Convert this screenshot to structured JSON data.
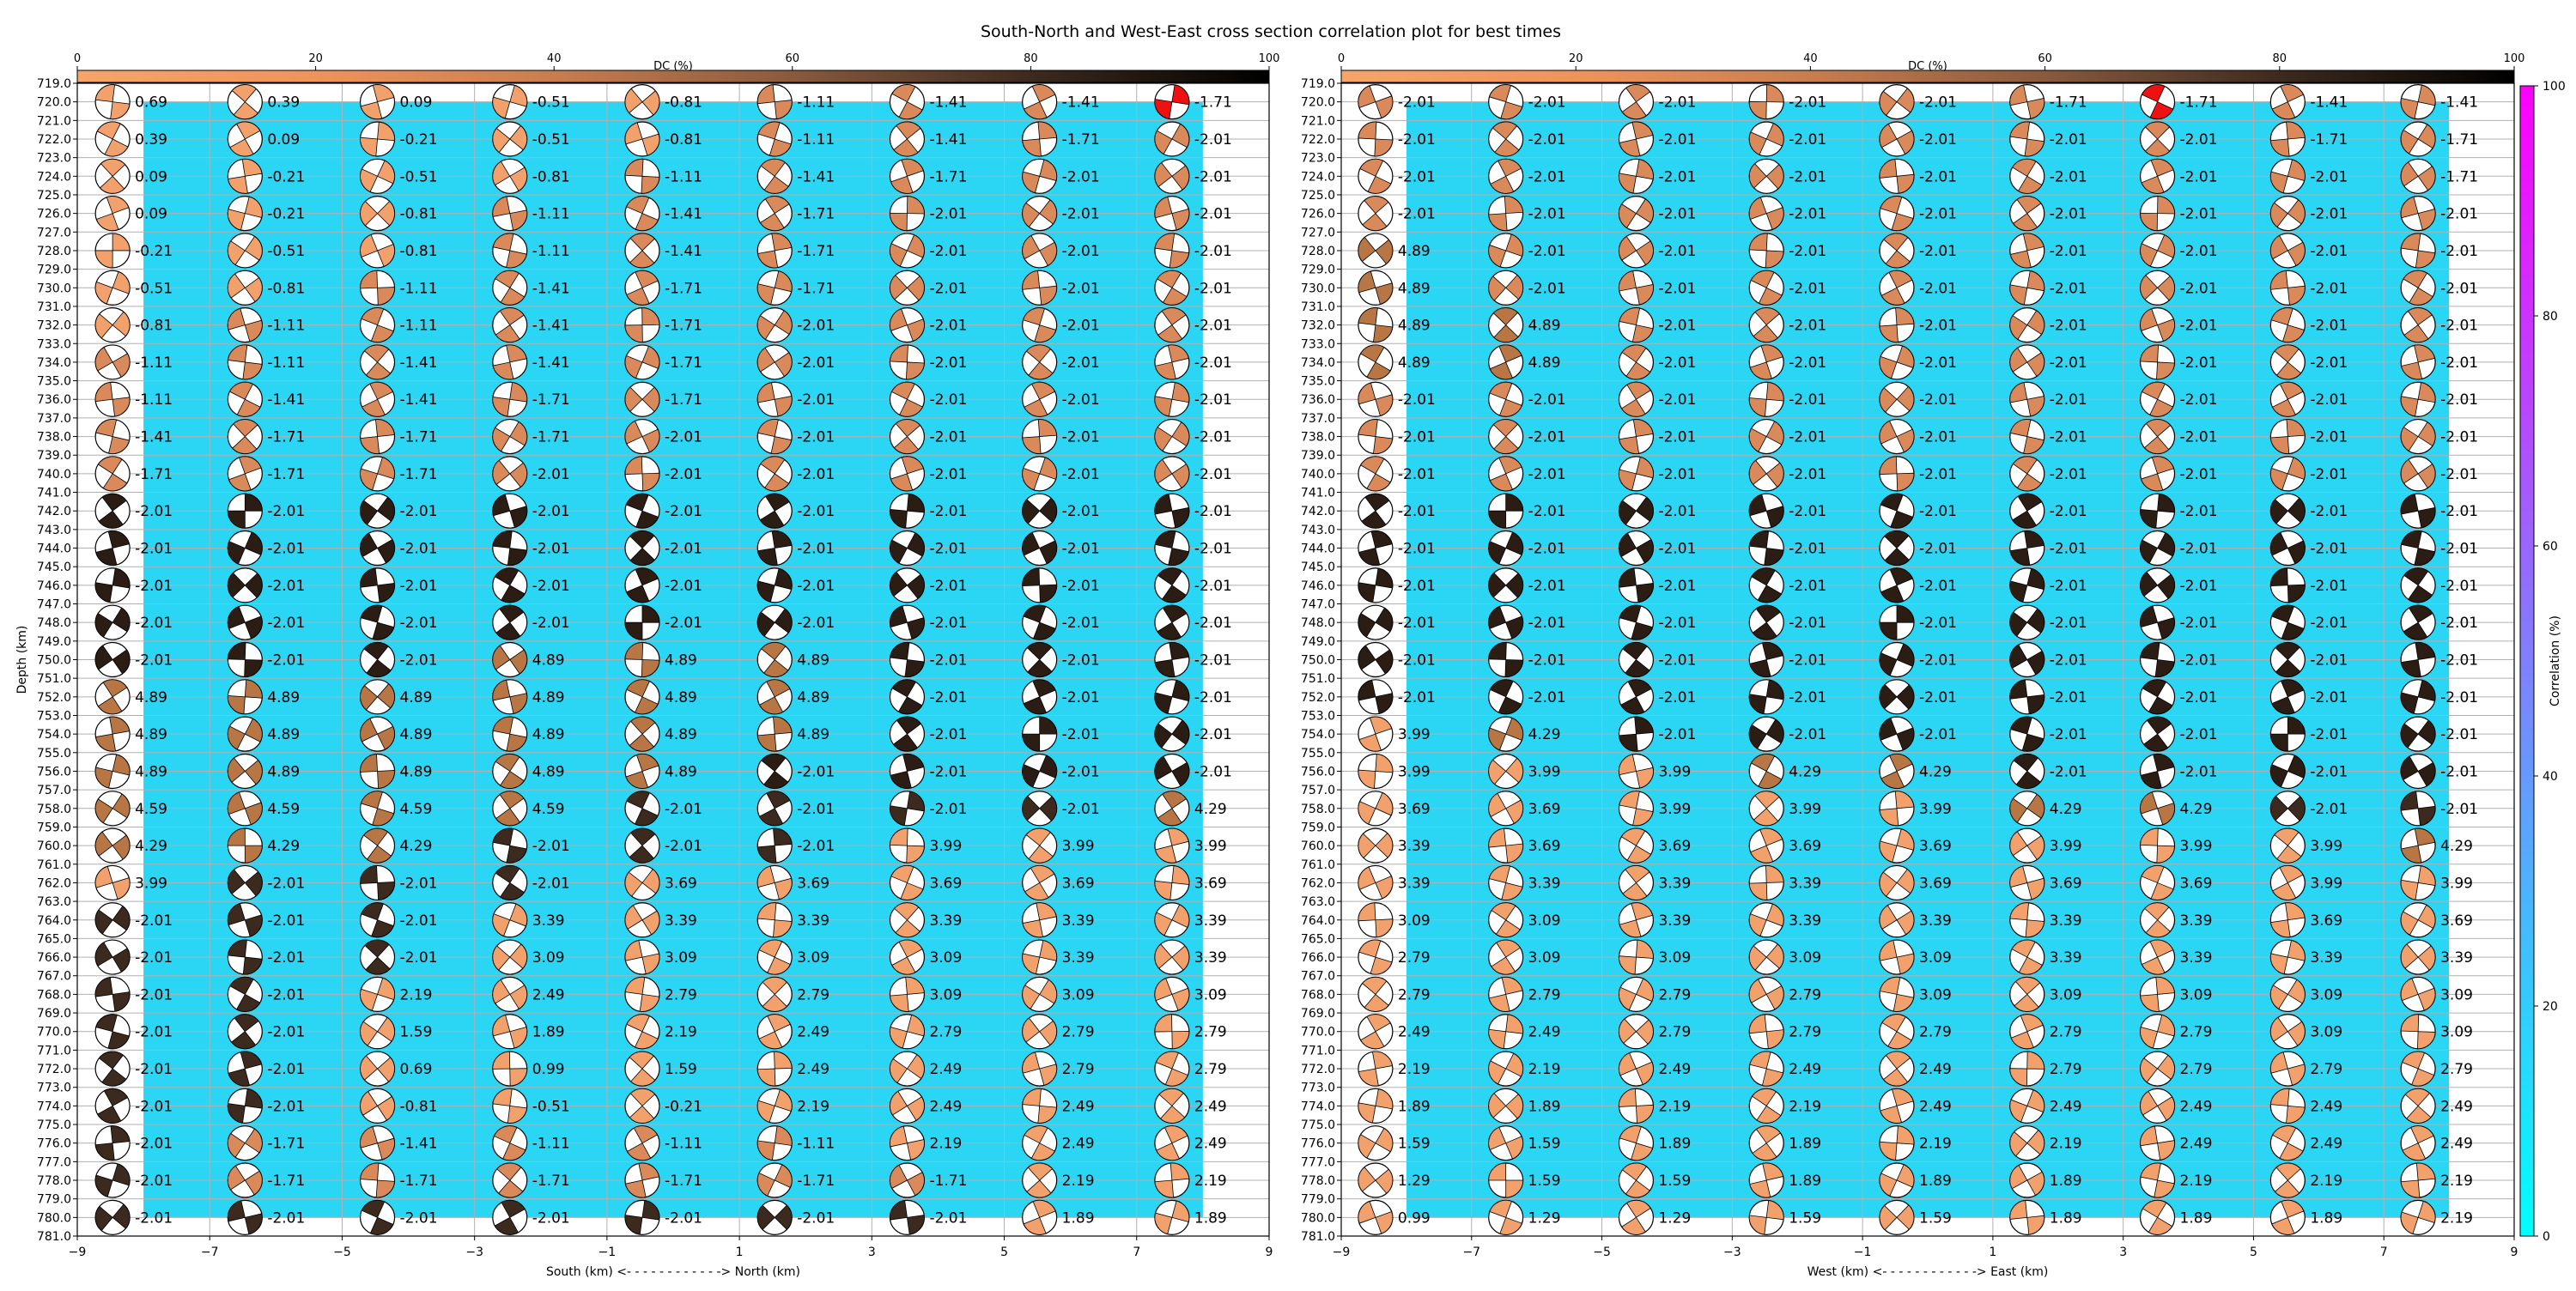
{
  "title": "South-North and West-East cross section correlation plot for best times",
  "dc_colorbar": {
    "label": "DC (%)",
    "ticks": [
      "0",
      "20",
      "40",
      "60",
      "80",
      "100"
    ],
    "stops": [
      "#f5a46a",
      "#f0935a",
      "#c87d4f",
      "#8a5a3c",
      "#3d2a1e",
      "#000000"
    ]
  },
  "correlation_colorbar": {
    "label": "Correlation (%)",
    "ticks": [
      "0",
      "20",
      "40",
      "60",
      "80",
      "100"
    ],
    "stops": [
      "#00ffff",
      "#ff00ff"
    ]
  },
  "chart_data": [
    {
      "type": "heatmap",
      "panel": "south-north",
      "xlabel": "South (km) <- - - - - - - - - - - -> North (km)",
      "ylabel": "Depth (km)",
      "xlim": [
        -9,
        9
      ],
      "ylim": [
        781,
        719
      ],
      "x_ticks": [
        "−9",
        "−7",
        "−5",
        "−3",
        "−1",
        "1",
        "3",
        "5",
        "7",
        "9"
      ],
      "y_ticks": [
        "719.0",
        "720.0",
        "721.0",
        "722.0",
        "723.0",
        "724.0",
        "725.0",
        "726.0",
        "727.0",
        "728.0",
        "729.0",
        "730.0",
        "731.0",
        "732.0",
        "733.0",
        "734.0",
        "735.0",
        "736.0",
        "737.0",
        "738.0",
        "739.0",
        "740.0",
        "741.0",
        "742.0",
        "743.0",
        "744.0",
        "745.0",
        "746.0",
        "747.0",
        "748.0",
        "749.0",
        "750.0",
        "751.0",
        "752.0",
        "753.0",
        "754.0",
        "755.0",
        "756.0",
        "757.0",
        "758.0",
        "759.0",
        "760.0",
        "761.0",
        "762.0",
        "763.0",
        "764.0",
        "765.0",
        "766.0",
        "767.0",
        "768.0",
        "769.0",
        "770.0",
        "771.0",
        "772.0",
        "773.0",
        "774.0",
        "775.0",
        "776.0",
        "777.0",
        "778.0",
        "779.0",
        "780.0",
        "781.0"
      ],
      "x": [
        -8,
        -6,
        -4,
        -2,
        0,
        2,
        4,
        6,
        8
      ],
      "depths": [
        720,
        722,
        724,
        726,
        728,
        730,
        732,
        734,
        736,
        738,
        740,
        742,
        744,
        746,
        748,
        750,
        752,
        754,
        756,
        758,
        760,
        762,
        764,
        766,
        768,
        770,
        772,
        774,
        776,
        778,
        780
      ],
      "background_correlation_percent": 14,
      "best_marker": {
        "depth": 720,
        "x": 8
      },
      "labels": [
        [
          "0.69",
          "0.39",
          "0.09",
          "-0.51",
          "-0.81",
          "-1.11",
          "-1.41",
          "-1.41",
          "-1.71"
        ],
        [
          "0.39",
          "0.09",
          "-0.21",
          "-0.51",
          "-0.81",
          "-1.11",
          "-1.41",
          "-1.71",
          "-2.01"
        ],
        [
          "0.09",
          "-0.21",
          "-0.51",
          "-0.81",
          "-1.11",
          "-1.41",
          "-1.71",
          "-2.01",
          "-2.01"
        ],
        [
          "0.09",
          "-0.21",
          "-0.81",
          "-1.11",
          "-1.41",
          "-1.71",
          "-2.01",
          "-2.01",
          "-2.01"
        ],
        [
          "-0.21",
          "-0.51",
          "-0.81",
          "-1.11",
          "-1.41",
          "-1.71",
          "-2.01",
          "-2.01",
          "-2.01"
        ],
        [
          "-0.51",
          "-0.81",
          "-1.11",
          "-1.41",
          "-1.71",
          "-1.71",
          "-2.01",
          "-2.01",
          "-2.01"
        ],
        [
          "-0.81",
          "-1.11",
          "-1.11",
          "-1.41",
          "-1.71",
          "-2.01",
          "-2.01",
          "-2.01",
          "-2.01"
        ],
        [
          "-1.11",
          "-1.11",
          "-1.41",
          "-1.41",
          "-1.71",
          "-2.01",
          "-2.01",
          "-2.01",
          "-2.01"
        ],
        [
          "-1.11",
          "-1.41",
          "-1.41",
          "-1.71",
          "-1.71",
          "-2.01",
          "-2.01",
          "-2.01",
          "-2.01"
        ],
        [
          "-1.41",
          "-1.71",
          "-1.71",
          "-1.71",
          "-2.01",
          "-2.01",
          "-2.01",
          "-2.01",
          "-2.01"
        ],
        [
          "-1.71",
          "-1.71",
          "-1.71",
          "-2.01",
          "-2.01",
          "-2.01",
          "-2.01",
          "-2.01",
          "-2.01"
        ],
        [
          "-2.01",
          "-2.01",
          "-2.01",
          "-2.01",
          "-2.01",
          "-2.01",
          "-2.01",
          "-2.01",
          "-2.01"
        ],
        [
          "-2.01",
          "-2.01",
          "-2.01",
          "-2.01",
          "-2.01",
          "-2.01",
          "-2.01",
          "-2.01",
          "-2.01"
        ],
        [
          "-2.01",
          "-2.01",
          "-2.01",
          "-2.01",
          "-2.01",
          "-2.01",
          "-2.01",
          "-2.01",
          "-2.01"
        ],
        [
          "-2.01",
          "-2.01",
          "-2.01",
          "-2.01",
          "-2.01",
          "-2.01",
          "-2.01",
          "-2.01",
          "-2.01"
        ],
        [
          "-2.01",
          "-2.01",
          "-2.01",
          "4.89",
          "4.89",
          "4.89",
          "-2.01",
          "-2.01",
          "-2.01"
        ],
        [
          "4.89",
          "4.89",
          "4.89",
          "4.89",
          "4.89",
          "4.89",
          "-2.01",
          "-2.01",
          "-2.01"
        ],
        [
          "4.89",
          "4.89",
          "4.89",
          "4.89",
          "4.89",
          "4.89",
          "-2.01",
          "-2.01",
          "-2.01"
        ],
        [
          "4.89",
          "4.89",
          "4.89",
          "4.89",
          "4.89",
          "-2.01",
          "-2.01",
          "-2.01",
          "-2.01"
        ],
        [
          "4.59",
          "4.59",
          "4.59",
          "4.59",
          "-2.01",
          "-2.01",
          "-2.01",
          "-2.01",
          "4.29"
        ],
        [
          "4.29",
          "4.29",
          "4.29",
          "-2.01",
          "-2.01",
          "-2.01",
          "3.99",
          "3.99",
          "3.99"
        ],
        [
          "3.99",
          "-2.01",
          "-2.01",
          "-2.01",
          "3.69",
          "3.69",
          "3.69",
          "3.69",
          "3.69"
        ],
        [
          "-2.01",
          "-2.01",
          "-2.01",
          "3.39",
          "3.39",
          "3.39",
          "3.39",
          "3.39",
          "3.39"
        ],
        [
          "-2.01",
          "-2.01",
          "-2.01",
          "3.09",
          "3.09",
          "3.09",
          "3.09",
          "3.39",
          "3.39"
        ],
        [
          "-2.01",
          "-2.01",
          "2.19",
          "2.49",
          "2.79",
          "2.79",
          "3.09",
          "3.09",
          "3.09"
        ],
        [
          "-2.01",
          "-2.01",
          "1.59",
          "1.89",
          "2.19",
          "2.49",
          "2.79",
          "2.79",
          "2.79"
        ],
        [
          "-2.01",
          "-2.01",
          "0.69",
          "0.99",
          "1.59",
          "2.49",
          "2.49",
          "2.79",
          "2.79"
        ],
        [
          "-2.01",
          "-2.01",
          "-0.81",
          "-0.51",
          "-0.21",
          "2.19",
          "2.49",
          "2.49",
          "2.49"
        ],
        [
          "-2.01",
          "-1.71",
          "-1.41",
          "-1.11",
          "-1.11",
          "-1.11",
          "2.19",
          "2.49",
          "2.49"
        ],
        [
          "-2.01",
          "-1.71",
          "-1.71",
          "-1.71",
          "-1.71",
          "-1.71",
          "-1.71",
          "2.19",
          "2.19"
        ],
        [
          "-2.01",
          "-2.01",
          "-2.01",
          "-2.01",
          "-2.01",
          "-2.01",
          "-2.01",
          "1.89",
          "1.89"
        ]
      ]
    },
    {
      "type": "heatmap",
      "panel": "west-east",
      "xlabel": "West (km) <- - - - - - - - - - - -> East (km)",
      "ylabel": "",
      "xlim": [
        -9,
        9
      ],
      "ylim": [
        781,
        719
      ],
      "x_ticks": [
        "−9",
        "−7",
        "−5",
        "−3",
        "−1",
        "1",
        "3",
        "5",
        "7",
        "9"
      ],
      "y_ticks": [
        "719.0",
        "720.0",
        "721.0",
        "722.0",
        "723.0",
        "724.0",
        "725.0",
        "726.0",
        "727.0",
        "728.0",
        "729.0",
        "730.0",
        "731.0",
        "732.0",
        "733.0",
        "734.0",
        "735.0",
        "736.0",
        "737.0",
        "738.0",
        "739.0",
        "740.0",
        "741.0",
        "742.0",
        "743.0",
        "744.0",
        "745.0",
        "746.0",
        "747.0",
        "748.0",
        "749.0",
        "750.0",
        "751.0",
        "752.0",
        "753.0",
        "754.0",
        "755.0",
        "756.0",
        "757.0",
        "758.0",
        "759.0",
        "760.0",
        "761.0",
        "762.0",
        "763.0",
        "764.0",
        "765.0",
        "766.0",
        "767.0",
        "768.0",
        "769.0",
        "770.0",
        "771.0",
        "772.0",
        "773.0",
        "774.0",
        "775.0",
        "776.0",
        "777.0",
        "778.0",
        "779.0",
        "780.0",
        "781.0"
      ],
      "x": [
        -8,
        -6,
        -4,
        -2,
        0,
        2,
        4,
        6,
        8
      ],
      "depths": [
        720,
        722,
        724,
        726,
        728,
        730,
        732,
        734,
        736,
        738,
        740,
        742,
        744,
        746,
        748,
        750,
        752,
        754,
        756,
        758,
        760,
        762,
        764,
        766,
        768,
        770,
        772,
        774,
        776,
        778,
        780
      ],
      "background_correlation_percent": 14,
      "best_marker": {
        "depth": 720,
        "x": 4
      },
      "labels": [
        [
          "-2.01",
          "-2.01",
          "-2.01",
          "-2.01",
          "-2.01",
          "-1.71",
          "-1.71",
          "-1.41",
          "-1.41"
        ],
        [
          "-2.01",
          "-2.01",
          "-2.01",
          "-2.01",
          "-2.01",
          "-2.01",
          "-2.01",
          "-1.71",
          "-1.71"
        ],
        [
          "-2.01",
          "-2.01",
          "-2.01",
          "-2.01",
          "-2.01",
          "-2.01",
          "-2.01",
          "-2.01",
          "-1.71"
        ],
        [
          "-2.01",
          "-2.01",
          "-2.01",
          "-2.01",
          "-2.01",
          "-2.01",
          "-2.01",
          "-2.01",
          "-2.01"
        ],
        [
          "4.89",
          "-2.01",
          "-2.01",
          "-2.01",
          "-2.01",
          "-2.01",
          "-2.01",
          "-2.01",
          "-2.01"
        ],
        [
          "4.89",
          "-2.01",
          "-2.01",
          "-2.01",
          "-2.01",
          "-2.01",
          "-2.01",
          "-2.01",
          "-2.01"
        ],
        [
          "4.89",
          "4.89",
          "-2.01",
          "-2.01",
          "-2.01",
          "-2.01",
          "-2.01",
          "-2.01",
          "-2.01"
        ],
        [
          "4.89",
          "4.89",
          "-2.01",
          "-2.01",
          "-2.01",
          "-2.01",
          "-2.01",
          "-2.01",
          "-2.01"
        ],
        [
          "-2.01",
          "-2.01",
          "-2.01",
          "-2.01",
          "-2.01",
          "-2.01",
          "-2.01",
          "-2.01",
          "-2.01"
        ],
        [
          "-2.01",
          "-2.01",
          "-2.01",
          "-2.01",
          "-2.01",
          "-2.01",
          "-2.01",
          "-2.01",
          "-2.01"
        ],
        [
          "-2.01",
          "-2.01",
          "-2.01",
          "-2.01",
          "-2.01",
          "-2.01",
          "-2.01",
          "-2.01",
          "-2.01"
        ],
        [
          "-2.01",
          "-2.01",
          "-2.01",
          "-2.01",
          "-2.01",
          "-2.01",
          "-2.01",
          "-2.01",
          "-2.01"
        ],
        [
          "-2.01",
          "-2.01",
          "-2.01",
          "-2.01",
          "-2.01",
          "-2.01",
          "-2.01",
          "-2.01",
          "-2.01"
        ],
        [
          "-2.01",
          "-2.01",
          "-2.01",
          "-2.01",
          "-2.01",
          "-2.01",
          "-2.01",
          "-2.01",
          "-2.01"
        ],
        [
          "-2.01",
          "-2.01",
          "-2.01",
          "-2.01",
          "-2.01",
          "-2.01",
          "-2.01",
          "-2.01",
          "-2.01"
        ],
        [
          "-2.01",
          "-2.01",
          "-2.01",
          "-2.01",
          "-2.01",
          "-2.01",
          "-2.01",
          "-2.01",
          "-2.01"
        ],
        [
          "-2.01",
          "-2.01",
          "-2.01",
          "-2.01",
          "-2.01",
          "-2.01",
          "-2.01",
          "-2.01",
          "-2.01"
        ],
        [
          "3.99",
          "4.29",
          "-2.01",
          "-2.01",
          "-2.01",
          "-2.01",
          "-2.01",
          "-2.01",
          "-2.01"
        ],
        [
          "3.99",
          "3.99",
          "3.99",
          "4.29",
          "4.29",
          "-2.01",
          "-2.01",
          "-2.01",
          "-2.01"
        ],
        [
          "3.69",
          "3.69",
          "3.99",
          "3.99",
          "3.99",
          "4.29",
          "4.29",
          "-2.01",
          "-2.01"
        ],
        [
          "3.39",
          "3.69",
          "3.69",
          "3.69",
          "3.69",
          "3.99",
          "3.99",
          "3.99",
          "4.29"
        ],
        [
          "3.39",
          "3.39",
          "3.39",
          "3.39",
          "3.69",
          "3.69",
          "3.69",
          "3.99",
          "3.99"
        ],
        [
          "3.09",
          "3.09",
          "3.39",
          "3.39",
          "3.39",
          "3.39",
          "3.39",
          "3.69",
          "3.69"
        ],
        [
          "2.79",
          "3.09",
          "3.09",
          "3.09",
          "3.09",
          "3.39",
          "3.39",
          "3.39",
          "3.39"
        ],
        [
          "2.79",
          "2.79",
          "2.79",
          "2.79",
          "3.09",
          "3.09",
          "3.09",
          "3.09",
          "3.09"
        ],
        [
          "2.49",
          "2.49",
          "2.79",
          "2.79",
          "2.79",
          "2.79",
          "2.79",
          "3.09",
          "3.09"
        ],
        [
          "2.19",
          "2.19",
          "2.49",
          "2.49",
          "2.49",
          "2.79",
          "2.79",
          "2.79",
          "2.79"
        ],
        [
          "1.89",
          "1.89",
          "2.19",
          "2.19",
          "2.49",
          "2.49",
          "2.49",
          "2.49",
          "2.49"
        ],
        [
          "1.59",
          "1.59",
          "1.89",
          "1.89",
          "2.19",
          "2.19",
          "2.49",
          "2.49",
          "2.49"
        ],
        [
          "1.29",
          "1.59",
          "1.59",
          "1.89",
          "1.89",
          "1.89",
          "2.19",
          "2.19",
          "2.19"
        ],
        [
          "0.99",
          "1.29",
          "1.29",
          "1.59",
          "1.59",
          "1.89",
          "1.89",
          "1.89",
          "2.19"
        ]
      ]
    }
  ]
}
